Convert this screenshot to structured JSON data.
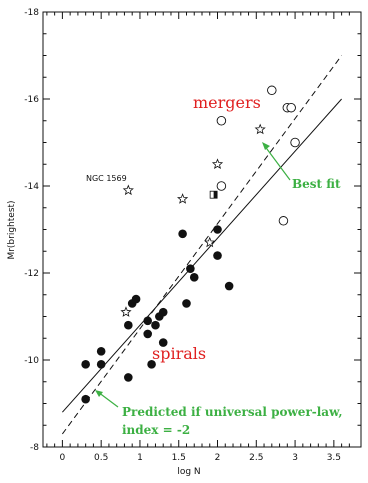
{
  "chart_data": {
    "type": "scatter",
    "xlabel": "log N",
    "ylabel": "Mr(brightest)",
    "xlim": [
      -0.25,
      3.85
    ],
    "ylim": [
      -8,
      -18
    ],
    "y_inverted": true,
    "x_ticks": [
      "0",
      "0.5",
      "1",
      "1.5",
      "2",
      "2.5",
      "3",
      "3.5"
    ],
    "x_tick_values": [
      0,
      0.5,
      1,
      1.5,
      2,
      2.5,
      3,
      3.5
    ],
    "y_ticks": [
      "-18",
      "-16",
      "-14",
      "-12",
      "-10",
      "-8"
    ],
    "y_tick_values": [
      -18,
      -16,
      -14,
      -12,
      -10,
      -8
    ],
    "series": [
      {
        "marker": "filled-circle",
        "points": [
          [
            0.3,
            -9.9
          ],
          [
            0.3,
            -9.1
          ],
          [
            0.5,
            -10.2
          ],
          [
            0.5,
            -9.9
          ],
          [
            0.85,
            -10.8
          ],
          [
            0.9,
            -11.3
          ],
          [
            0.95,
            -11.4
          ],
          [
            0.85,
            -9.6
          ],
          [
            1.1,
            -10.9
          ],
          [
            1.1,
            -10.6
          ],
          [
            1.15,
            -9.9
          ],
          [
            1.2,
            -10.8
          ],
          [
            1.25,
            -11.0
          ],
          [
            1.3,
            -11.1
          ],
          [
            1.3,
            -10.4
          ],
          [
            1.55,
            -12.9
          ],
          [
            1.6,
            -11.3
          ],
          [
            1.65,
            -12.1
          ],
          [
            1.7,
            -11.9
          ],
          [
            2.0,
            -12.4
          ],
          [
            2.0,
            -13.0
          ],
          [
            2.15,
            -11.7
          ]
        ]
      },
      {
        "marker": "open-star",
        "points": [
          [
            0.85,
            -13.9
          ],
          [
            1.55,
            -13.7
          ],
          [
            1.9,
            -12.7
          ],
          [
            2.0,
            -14.5
          ],
          [
            2.55,
            -15.3
          ],
          [
            0.82,
            -11.1
          ]
        ]
      },
      {
        "marker": "open-circle",
        "points": [
          [
            2.05,
            -15.5
          ],
          [
            2.7,
            -16.2
          ],
          [
            2.9,
            -15.8
          ],
          [
            2.95,
            -15.8
          ],
          [
            3.0,
            -15.0
          ],
          [
            2.85,
            -13.2
          ],
          [
            2.05,
            -14.0
          ]
        ]
      },
      {
        "marker": "half-filled-square",
        "points": [
          [
            1.95,
            -13.8
          ]
        ]
      }
    ],
    "lines": [
      {
        "style": "solid",
        "from": [
          0.0,
          -8.8
        ],
        "to": [
          3.6,
          -16.0
        ]
      },
      {
        "style": "dashed",
        "from": [
          0.0,
          -8.3
        ],
        "to": [
          3.6,
          -17.0
        ]
      }
    ],
    "annotations": {
      "mergers": "mergers",
      "spirals": "spirals",
      "best_fit": "Best fit",
      "predicted_line1": "Predicted if universal power-law,",
      "predicted_line2": "index = -2",
      "ngc": "NGC 1569"
    },
    "colors": {
      "red": "#e02020",
      "green": "#3cb043",
      "black": "#111111"
    }
  }
}
